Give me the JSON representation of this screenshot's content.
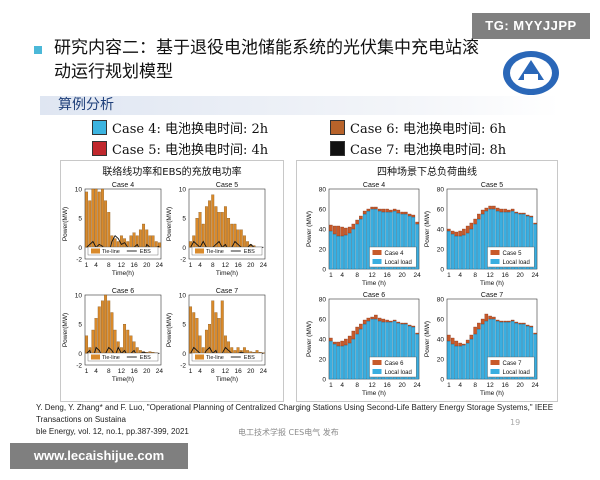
{
  "watermark_top": "TG: MYYJJPP",
  "watermark_bottom": "www.lecaishijue.com",
  "slide": {
    "title": "研究内容二：基于退役电池储能系统的光伏集中充电站滚动运行规划模型",
    "section": "算例分析",
    "cases": [
      {
        "label": "Case 4: 电池换电时间: 2h",
        "color": "#3cb4e0"
      },
      {
        "label": "Case 5: 电池换电时间: 4h",
        "color": "#c0282d"
      },
      {
        "label": "Case 6: 电池换电时间: 6h",
        "color": "#b8632a"
      },
      {
        "label": "Case 7: 电池换电时间: 8h",
        "color": "#111111"
      }
    ],
    "reference_line1": "Y. Deng, Y. Zhang* and F. Luo, \"Operational Planning of Centralized Charging Stations Using Second-Life Battery Energy Storage Systems,\" IEEE Transactions on Sustaina",
    "reference_line2": "ble Energy, vol. 12, no.1, pp.387-399, 2021",
    "publisher": "电工技术学报 CES电气 发布",
    "page_number": "19"
  },
  "colors": {
    "bar_orange": "#d98a2b",
    "bar_blue": "#3aaee0",
    "bar_top": "#c85a2a",
    "ebs_line": "#111111"
  },
  "chart_data": [
    {
      "type": "bar",
      "panel_title": "联络线功率和EBS的充放电功率",
      "xlabel": "Time(h)",
      "ylabel": "Power(MW)",
      "ylim": [
        -2,
        10
      ],
      "yticks": [
        -2,
        0,
        5,
        10
      ],
      "xticks": [
        1,
        4,
        8,
        12,
        16,
        20,
        24
      ],
      "legend": [
        "Tie-line",
        "EBS"
      ],
      "subplots": [
        {
          "title": "Case 4",
          "tie_line": [
            9.5,
            8,
            10,
            10,
            9.5,
            10,
            8,
            6,
            2,
            1.5,
            1,
            2,
            1.5,
            1,
            2,
            2.5,
            2,
            3,
            4,
            3,
            2,
            2,
            1,
            0.8
          ],
          "ebs": [
            0,
            0.5,
            1,
            0,
            0.5,
            0.2,
            -0.5,
            -1,
            1,
            2,
            1.5,
            0.5,
            0.8,
            0,
            -0.5,
            0,
            0.5,
            -0.5,
            -1,
            0.5,
            0,
            -0.5,
            0,
            0.2
          ]
        },
        {
          "title": "Case 5",
          "tie_line": [
            1,
            2,
            5,
            6,
            4,
            7,
            8,
            9,
            7,
            6,
            6,
            7,
            5,
            4,
            4,
            3,
            3,
            2,
            1,
            0.5,
            0.3,
            0,
            0,
            0
          ],
          "ebs": [
            0,
            1,
            0.5,
            0,
            1,
            0,
            -0.5,
            0,
            0.5,
            1,
            0,
            0.5,
            -0.5,
            0,
            1,
            0.5,
            0,
            -0.5,
            0,
            0.5,
            0,
            0,
            0,
            0
          ]
        },
        {
          "title": "Case 6",
          "tie_line": [
            3,
            1,
            4,
            6,
            8,
            9,
            10,
            9,
            7,
            4,
            2,
            1,
            5,
            4,
            3,
            2,
            1,
            0.5,
            0.3,
            0.2,
            0.3,
            0.2,
            0.1,
            0
          ],
          "ebs": [
            0,
            0.5,
            -1,
            1,
            0.5,
            -0.5,
            0,
            1,
            0.5,
            -0.5,
            1,
            0,
            0.5,
            -0.5,
            0,
            0.5,
            -0.5,
            0,
            0.2,
            0,
            0,
            0,
            0,
            0
          ]
        },
        {
          "title": "Case 7",
          "tie_line": [
            8,
            7,
            6,
            3,
            1,
            4,
            5,
            9,
            7,
            6,
            9,
            3,
            2,
            1,
            0.5,
            1,
            0.5,
            1,
            0.5,
            0.3,
            0.2,
            0.5,
            0.2,
            0.1
          ],
          "ebs": [
            0,
            1,
            0.5,
            0,
            -0.5,
            0.5,
            1,
            0,
            0.5,
            -1,
            0,
            1,
            0.5,
            0,
            -0.5,
            0,
            0.2,
            0,
            -0.3,
            0,
            0,
            0,
            0,
            0
          ]
        }
      ]
    },
    {
      "type": "bar",
      "panel_title": "四种场景下总负荷曲线",
      "xlabel": "Time (h)",
      "ylabel": "Power (MW)",
      "ylim": [
        0,
        80
      ],
      "yticks": [
        0,
        20,
        40,
        60,
        80
      ],
      "xticks": [
        1,
        4,
        8,
        12,
        16,
        20,
        24
      ],
      "legend_second": "Local load",
      "subplots": [
        {
          "title": "Case 4",
          "local_load": [
            38,
            35,
            33,
            33,
            34,
            36,
            40,
            45,
            50,
            55,
            58,
            60,
            60,
            58,
            57,
            57,
            57,
            58,
            56,
            55,
            55,
            53,
            52,
            45
          ],
          "extra": [
            6,
            8,
            10,
            9,
            7,
            6,
            5,
            4,
            3,
            3,
            2,
            2,
            2,
            2,
            3,
            3,
            2,
            2,
            3,
            2,
            2,
            2,
            2,
            2
          ]
        },
        {
          "title": "Case 5",
          "local_load": [
            38,
            35,
            33,
            33,
            34,
            36,
            40,
            45,
            50,
            55,
            58,
            60,
            60,
            58,
            57,
            57,
            57,
            58,
            56,
            55,
            55,
            53,
            52,
            45
          ],
          "extra": [
            2,
            3,
            4,
            5,
            6,
            7,
            6,
            5,
            5,
            4,
            3,
            3,
            3,
            3,
            3,
            3,
            2,
            2,
            1,
            1,
            1,
            1,
            1,
            1
          ]
        },
        {
          "title": "Case 6",
          "local_load": [
            38,
            35,
            33,
            33,
            34,
            36,
            40,
            45,
            50,
            55,
            58,
            60,
            60,
            58,
            57,
            57,
            57,
            58,
            56,
            55,
            55,
            53,
            52,
            45
          ],
          "extra": [
            3,
            2,
            4,
            5,
            6,
            7,
            8,
            7,
            5,
            4,
            3,
            2,
            4,
            3,
            3,
            2,
            1,
            1,
            1,
            1,
            1,
            1,
            1,
            1
          ]
        },
        {
          "title": "Case 7",
          "local_load": [
            38,
            35,
            33,
            33,
            34,
            36,
            40,
            45,
            50,
            55,
            58,
            60,
            60,
            58,
            57,
            57,
            57,
            58,
            56,
            55,
            55,
            53,
            52,
            45
          ],
          "extra": [
            6,
            6,
            5,
            3,
            1,
            3,
            4,
            7,
            6,
            5,
            7,
            3,
            2,
            1,
            1,
            1,
            1,
            1,
            1,
            1,
            1,
            1,
            1,
            1
          ]
        }
      ]
    }
  ]
}
